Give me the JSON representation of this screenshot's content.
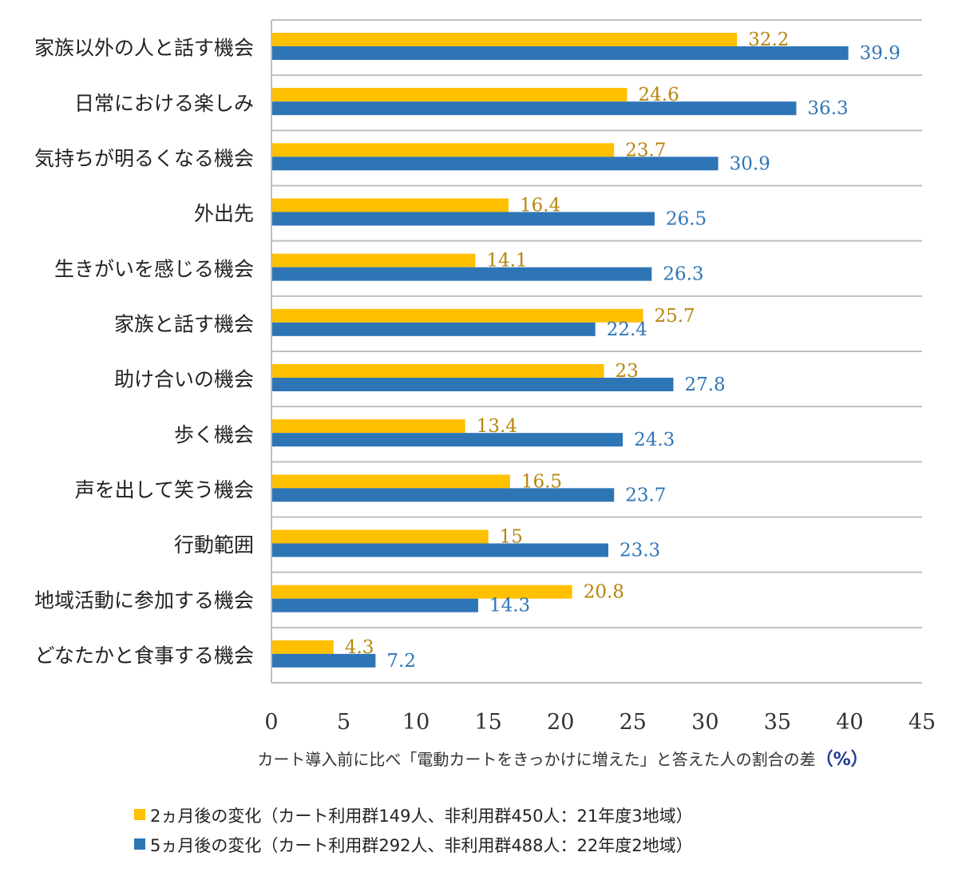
{
  "chart_data": {
    "type": "bar",
    "orientation": "horizontal",
    "categories": [
      "家族以外の人と話す機会",
      "日常における楽しみ",
      "気持ちが明るくなる機会",
      "外出先",
      "生きがいを感じる機会",
      "家族と話す機会",
      "助け合いの機会",
      "歩く機会",
      "声を出して笑う機会",
      "行動範囲",
      "地域活動に参加する機会",
      "どなたかと食事する機会"
    ],
    "series": [
      {
        "name": "2ヵ月後の変化（カート利用群149人、非利用群450人：21年度3地域）",
        "color": "#FFC000",
        "label_color": "#B8860B",
        "values": [
          32.2,
          24.6,
          23.7,
          16.4,
          14.1,
          25.7,
          23,
          13.4,
          16.5,
          15,
          20.8,
          4.3
        ]
      },
      {
        "name": "5ヵ月後の変化（カート利用群292人、非利用群488人：22年度2地域）",
        "color": "#2E75B6",
        "label_color": "#2E75B6",
        "values": [
          39.9,
          36.3,
          30.9,
          26.5,
          26.3,
          22.4,
          27.8,
          24.3,
          23.7,
          23.3,
          14.3,
          7.2
        ]
      }
    ],
    "xlabel": "カート導入前に比べ「電動カートをきっかけに増えた」と答えた人の割合の差",
    "xlabel_unit": "（%）",
    "xlim": [
      0,
      45
    ],
    "xticks": [
      0,
      5,
      10,
      15,
      20,
      25,
      30,
      35,
      40,
      45
    ],
    "gridlines": "horizontal-between-categories",
    "legend_position": "bottom-left"
  }
}
